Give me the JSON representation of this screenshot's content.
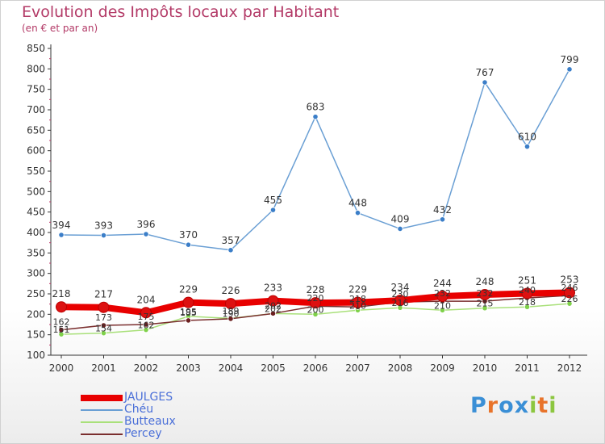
{
  "title": "Evolution des Impôts locaux par Habitant",
  "subtitle": "(en € et par an)",
  "logo": {
    "text": [
      "P",
      "r",
      "o",
      "x",
      "i",
      "t",
      "i"
    ],
    "colors": [
      "#3a8fd6",
      "#e8732a",
      "#3a8fd6",
      "#3a8fd6",
      "#8cc63f",
      "#e8732a",
      "#8cc63f"
    ]
  },
  "chart_data": {
    "type": "line",
    "title": "Evolution des Impôts locaux par Habitant",
    "subtitle": "(en € et par an)",
    "x": [
      "2000",
      "2001",
      "2002",
      "2003",
      "2004",
      "2005",
      "2006",
      "2007",
      "2008",
      "2009",
      "2010",
      "2011",
      "2012"
    ],
    "ylim": [
      100,
      850
    ],
    "yticks": [
      100,
      150,
      200,
      250,
      300,
      350,
      400,
      450,
      500,
      550,
      600,
      650,
      700,
      750,
      800,
      850
    ],
    "grid": false,
    "legend_position": "bottom-left",
    "series": [
      {
        "name": "JAULGES",
        "color": "#e80000",
        "values": [
          218,
          217,
          204,
          229,
          226,
          233,
          228,
          229,
          234,
          244,
          248,
          251,
          253
        ],
        "labels": [
          "218",
          "217",
          "204",
          "229",
          "226",
          "233",
          "228",
          "229",
          "234",
          "244",
          "248",
          "251",
          "253"
        ]
      },
      {
        "name": "Chéu",
        "color": "#6a9fd4",
        "values": [
          394,
          393,
          396,
          370,
          357,
          455,
          683,
          448,
          409,
          432,
          767,
          610,
          799
        ],
        "labels": [
          "394",
          "393",
          "396",
          "370",
          "357",
          "455",
          "683",
          "448",
          "409",
          "432",
          "767",
          "610",
          "799"
        ]
      },
      {
        "name": "Butteaux",
        "color": "#a9e07a",
        "values": [
          151,
          154,
          162,
          195,
          190,
          202,
          200,
          210,
          216,
          210,
          215,
          218,
          226
        ],
        "labels": [
          "151",
          "154",
          "162",
          "195",
          "190",
          "202",
          "200",
          "210",
          "216",
          "210",
          "215",
          "218",
          "226"
        ]
      },
      {
        "name": "Percey",
        "color": "#7a2e2e",
        "values": [
          162,
          173,
          175,
          185,
          189,
          202,
          220,
          218,
          230,
          232,
          232,
          240,
          246
        ],
        "labels": [
          "162",
          "173",
          "175",
          "185",
          "189",
          "202",
          "220",
          "218",
          "230",
          "232",
          "232",
          "240",
          "246"
        ]
      }
    ]
  }
}
